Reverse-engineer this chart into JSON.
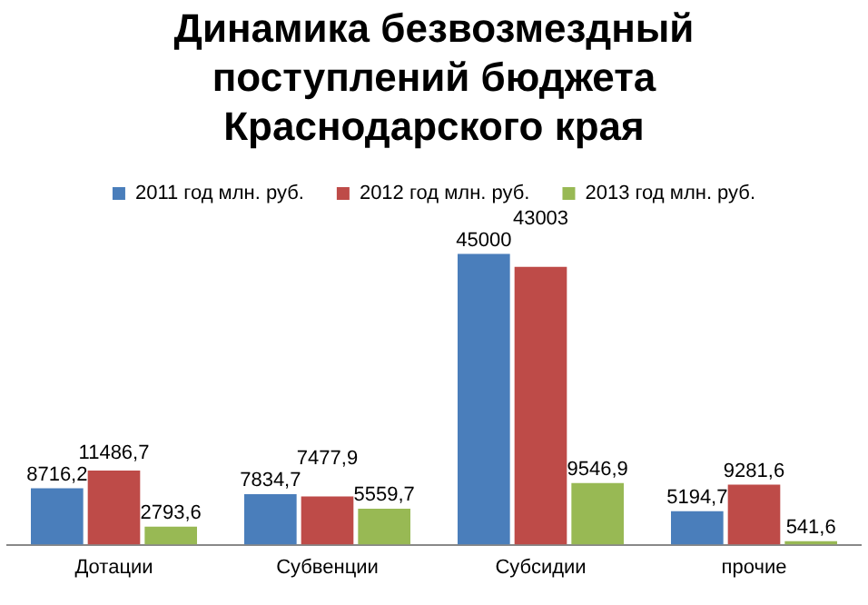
{
  "chart_data": {
    "type": "bar",
    "title": "Динамика безвозмездный поступлений бюджета Краснодарского края",
    "categories": [
      "Дотации",
      "Субвенции",
      "Субсидии",
      "прочие"
    ],
    "series": [
      {
        "name": "2011 год млн. руб.",
        "color": "#4a7ebb",
        "values": [
          8716.2,
          7834.7,
          45000,
          5194.7
        ],
        "value_labels": [
          "8716,2",
          "7834,7",
          "45000",
          "5194,7"
        ]
      },
      {
        "name": "2012 год млн. руб.",
        "color": "#be4b48",
        "values": [
          11486.7,
          7477.9,
          43003,
          9281.6
        ],
        "value_labels": [
          "11486,7",
          "7477,9",
          "43003",
          "9281,6"
        ]
      },
      {
        "name": "2013 год млн. руб.",
        "color": "#98b954",
        "values": [
          2793.6,
          5559.7,
          9546.9,
          541.6
        ],
        "value_labels": [
          "2793,6",
          "5559,7",
          "9546,9",
          "541,6"
        ]
      }
    ],
    "legend": "top",
    "tick_labels": "x"
  }
}
